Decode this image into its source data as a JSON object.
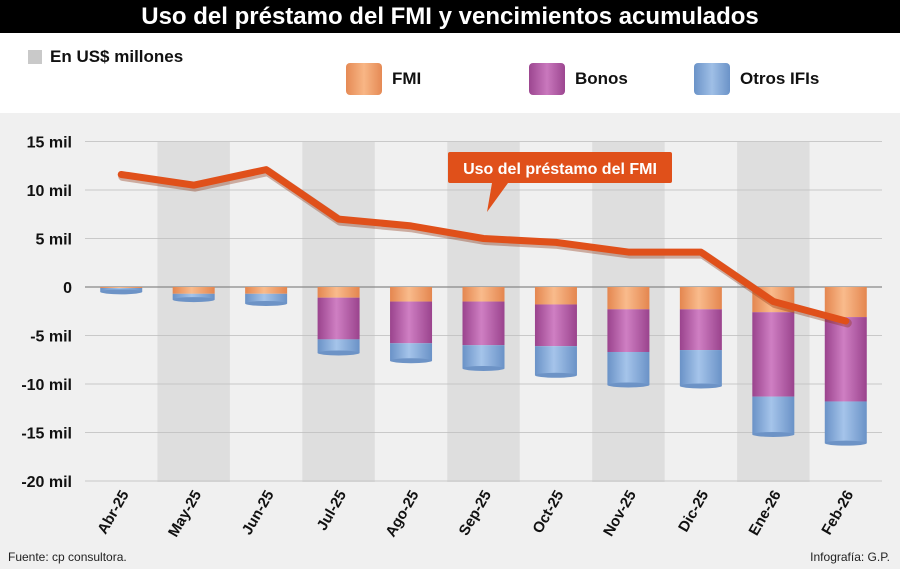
{
  "title": "Uso del préstamo del FMI y vencimientos acumulados",
  "unit_label": "En US$ millones",
  "legend": [
    {
      "label": "FMI",
      "color": "#f5a36e"
    },
    {
      "label": "Bonos",
      "color": "#b65aa8"
    },
    {
      "label": "Otros IFIs",
      "color": "#7ea5d6"
    }
  ],
  "line_label": "Uso del préstamo del FMI",
  "footer": {
    "source": "Fuente: cp consultora.",
    "credit": "Infografía: G.P."
  },
  "colors": {
    "line": "#e0501a",
    "shade": "#dedede",
    "grid": "#bdbdbd"
  },
  "chart_data": {
    "type": "bar",
    "stacked": true,
    "categories": [
      "Abr-25",
      "May-25",
      "Jun-25",
      "Jul-25",
      "Ago-25",
      "Sep-25",
      "Oct-25",
      "Nov-25",
      "Dic-25",
      "Ene-26",
      "Feb-26"
    ],
    "y_ticks": [
      15000,
      10000,
      5000,
      0,
      -5000,
      -10000,
      -15000,
      -20000
    ],
    "y_tick_labels": [
      "15 mil",
      "10 mil",
      "5 mil",
      "0",
      "-5 mil",
      "-10 mil",
      "-15 mil",
      "-20 mil"
    ],
    "ylim": [
      -20000,
      15000
    ],
    "series": [
      {
        "name": "FMI",
        "values": [
          -100,
          -700,
          -700,
          -1100,
          -1500,
          -1500,
          -1800,
          -2300,
          -2300,
          -2600,
          -3100
        ]
      },
      {
        "name": "Bonos",
        "values": [
          0,
          0,
          0,
          -4300,
          -4300,
          -4500,
          -4300,
          -4400,
          -4200,
          -8700,
          -8700
        ]
      },
      {
        "name": "Otros IFIs",
        "values": [
          -400,
          -600,
          -1000,
          -1400,
          -1800,
          -2400,
          -3000,
          -3400,
          -3700,
          -3900,
          -4300
        ]
      }
    ],
    "line": {
      "name": "Uso del préstamo del FMI",
      "values": [
        11600,
        10500,
        12100,
        7000,
        6300,
        5000,
        4600,
        3600,
        3600,
        -1500,
        -3500
      ]
    },
    "shaded_categories": [
      "May-25",
      "Jul-25",
      "Sep-25",
      "Nov-25",
      "Ene-26"
    ],
    "grid": true
  }
}
